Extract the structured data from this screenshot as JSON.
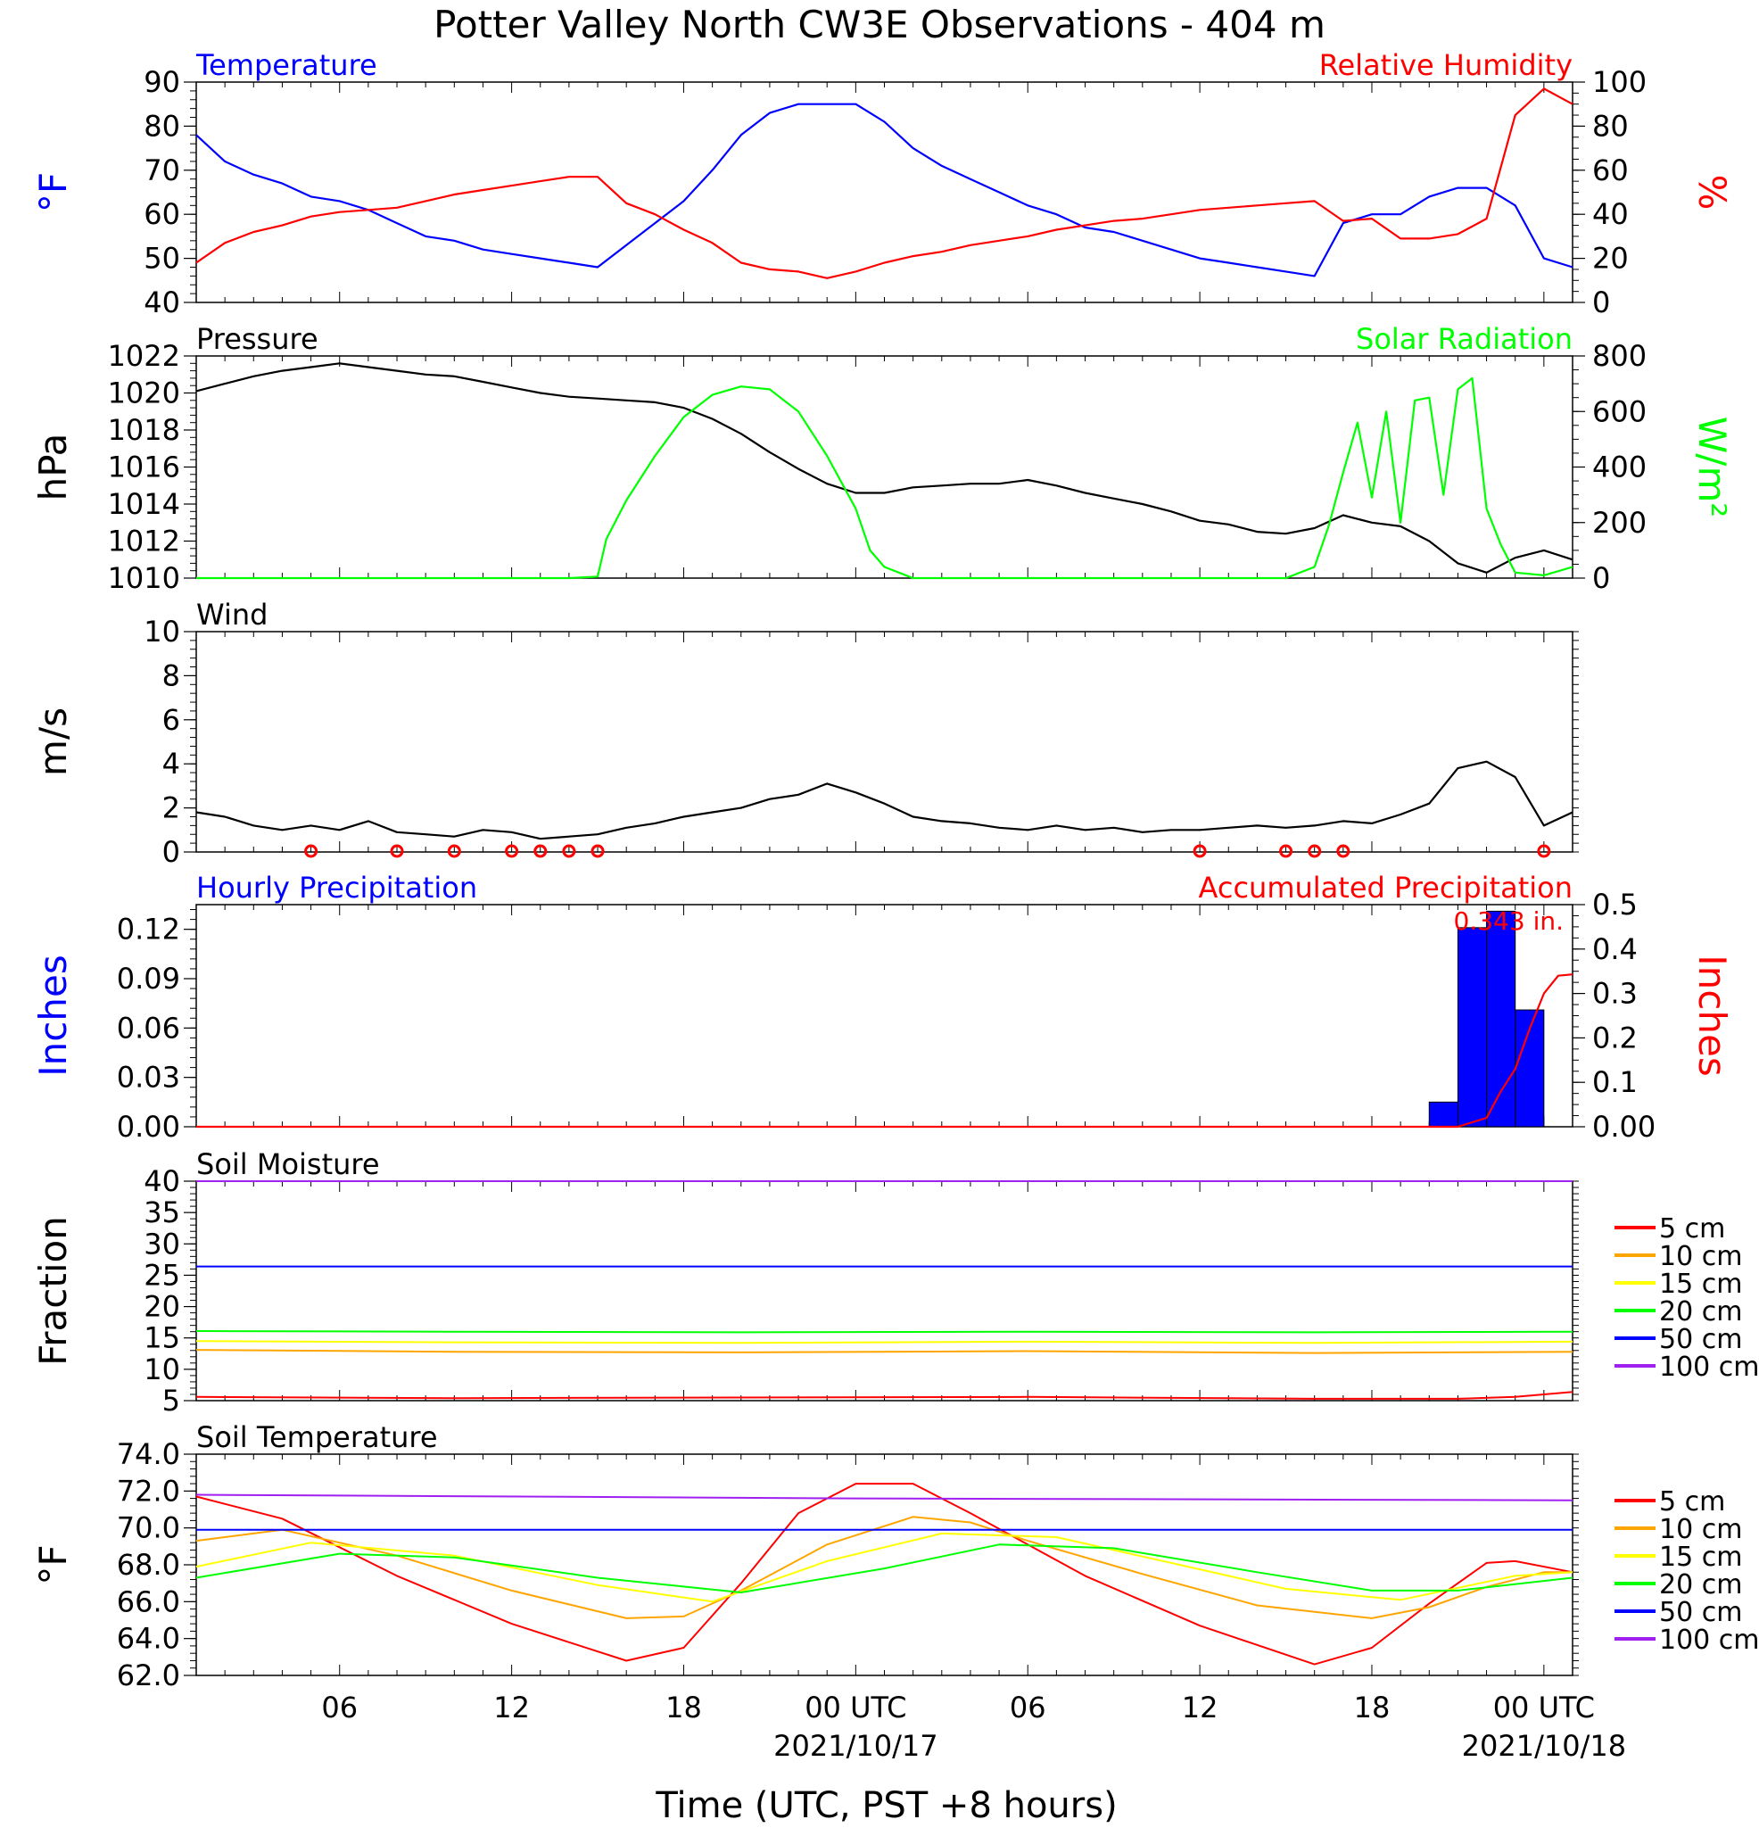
{
  "title": "Potter Valley North CW3E Observations - 404 m",
  "x_axis": {
    "title": "Time (UTC, PST +8 hours)",
    "ticks": [
      {
        "hour": 6,
        "label": "06",
        "date": ""
      },
      {
        "hour": 12,
        "label": "12",
        "date": ""
      },
      {
        "hour": 18,
        "label": "18",
        "date": ""
      },
      {
        "hour": 24,
        "label": "00 UTC",
        "date": "2021/10/17"
      },
      {
        "hour": 30,
        "label": "06",
        "date": ""
      },
      {
        "hour": 36,
        "label": "12",
        "date": ""
      },
      {
        "hour": 42,
        "label": "18",
        "date": ""
      },
      {
        "hour": 48,
        "label": "00 UTC",
        "date": "2021/10/18"
      }
    ]
  },
  "colors": {
    "temperature": "#0000ff",
    "humidity": "#ff0000",
    "pressure": "#000000",
    "solar": "#00ff00",
    "wind": "#000000",
    "barbs": "#ff0000",
    "precip_bars": "#0000ff",
    "accum": "#ff0000",
    "soil": {
      "5 cm": "#ff0000",
      "10 cm": "#ffa500",
      "15 cm": "#ffff00",
      "20 cm": "#00ff00",
      "50 cm": "#0000ff",
      "100 cm": "#a020f0"
    }
  },
  "chart_data": [
    {
      "type": "line",
      "panel": "temp_rh",
      "left_title": "Temperature",
      "right_title": "Relative Humidity",
      "left_unit": "°F",
      "right_unit": "%",
      "left_ylim": [
        40,
        90
      ],
      "right_ylim": [
        0,
        100
      ],
      "left_ticks": [
        "40",
        "50",
        "60",
        "70",
        "80",
        "90"
      ],
      "right_ticks": [
        "0",
        "20",
        "40",
        "60",
        "80",
        "100"
      ],
      "series": [
        {
          "name": "Temperature",
          "axis": "left",
          "x": [
            1,
            2,
            3,
            4,
            5,
            6,
            7,
            8,
            9,
            10,
            11,
            12,
            13,
            14,
            15,
            16,
            17,
            18,
            19,
            20,
            21,
            22,
            23,
            24,
            25,
            26,
            27,
            28,
            29,
            30,
            31,
            32,
            33,
            34,
            35,
            36,
            37,
            38,
            39,
            40,
            41,
            42,
            43,
            44,
            45,
            46,
            47,
            48,
            49
          ],
          "y": [
            78,
            72,
            69,
            67,
            64,
            63,
            61,
            58,
            55,
            54,
            52,
            51,
            50,
            49,
            48,
            53,
            58,
            63,
            70,
            78,
            83,
            85,
            85,
            85,
            81,
            75,
            71,
            68,
            65,
            62,
            60,
            57,
            56,
            54,
            52,
            50,
            49,
            48,
            47,
            46,
            58,
            60,
            60,
            64,
            66,
            66,
            62,
            50,
            48
          ]
        },
        {
          "name": "Relative Humidity",
          "axis": "right",
          "x": [
            1,
            2,
            3,
            4,
            5,
            6,
            7,
            8,
            9,
            10,
            11,
            12,
            13,
            14,
            15,
            16,
            17,
            18,
            19,
            20,
            21,
            22,
            23,
            24,
            25,
            26,
            27,
            28,
            29,
            30,
            31,
            32,
            33,
            34,
            35,
            36,
            37,
            38,
            39,
            40,
            41,
            42,
            43,
            44,
            45,
            46,
            47,
            48,
            49
          ],
          "y": [
            18,
            27,
            32,
            35,
            39,
            41,
            42,
            43,
            46,
            49,
            51,
            53,
            55,
            57,
            57,
            45,
            40,
            33,
            27,
            18,
            15,
            14,
            11,
            14,
            18,
            21,
            23,
            26,
            28,
            30,
            33,
            35,
            37,
            38,
            40,
            42,
            43,
            44,
            45,
            46,
            37,
            38,
            29,
            29,
            31,
            38,
            85,
            97,
            90
          ]
        }
      ]
    },
    {
      "type": "line",
      "panel": "pressure_solar",
      "left_title": "Pressure",
      "right_title": "Solar Radiation",
      "left_unit": "hPa",
      "right_unit": "W/m²",
      "left_ylim": [
        1010,
        1022
      ],
      "right_ylim": [
        0,
        800
      ],
      "left_ticks": [
        "1010",
        "1012",
        "1014",
        "1016",
        "1018",
        "1020",
        "1022"
      ],
      "right_ticks": [
        "0",
        "200",
        "400",
        "600",
        "800"
      ],
      "series": [
        {
          "name": "Pressure",
          "axis": "left",
          "x": [
            1,
            2,
            3,
            4,
            5,
            6,
            7,
            8,
            9,
            10,
            11,
            12,
            13,
            14,
            15,
            16,
            17,
            18,
            19,
            20,
            21,
            22,
            23,
            24,
            25,
            26,
            27,
            28,
            29,
            30,
            31,
            32,
            33,
            34,
            35,
            36,
            37,
            38,
            39,
            40,
            41,
            42,
            43,
            44,
            45,
            46,
            47,
            48,
            49
          ],
          "y": [
            1020.1,
            1020.5,
            1020.9,
            1021.2,
            1021.4,
            1021.6,
            1021.4,
            1021.2,
            1021.0,
            1020.9,
            1020.6,
            1020.3,
            1020.0,
            1019.8,
            1019.7,
            1019.6,
            1019.5,
            1019.2,
            1018.6,
            1017.8,
            1016.8,
            1015.9,
            1015.1,
            1014.6,
            1014.6,
            1014.9,
            1015.0,
            1015.1,
            1015.1,
            1015.3,
            1015.0,
            1014.6,
            1014.3,
            1014.0,
            1013.6,
            1013.1,
            1012.9,
            1012.5,
            1012.4,
            1012.7,
            1013.4,
            1013.0,
            1012.8,
            1012.0,
            1010.8,
            1010.3,
            1011.1,
            1011.5,
            1011.0
          ]
        },
        {
          "name": "Solar Radiation",
          "axis": "right",
          "x": [
            1,
            2,
            3,
            4,
            5,
            6,
            7,
            8,
            9,
            10,
            11,
            12,
            13,
            14,
            15,
            15.3,
            16,
            17,
            18,
            19,
            20,
            21,
            22,
            23,
            24,
            24.5,
            25,
            26,
            30,
            38,
            39,
            40,
            40.5,
            41,
            41.5,
            42,
            42.5,
            43,
            43.5,
            44,
            44.5,
            45,
            45.5,
            46,
            46.5,
            47,
            48,
            49
          ],
          "y": [
            0,
            0,
            0,
            0,
            0,
            0,
            0,
            0,
            0,
            0,
            0,
            0,
            0,
            0,
            5,
            140,
            280,
            440,
            580,
            660,
            690,
            680,
            600,
            440,
            250,
            100,
            40,
            0,
            0,
            0,
            0,
            40,
            190,
            380,
            560,
            290,
            600,
            200,
            640,
            650,
            300,
            680,
            720,
            250,
            120,
            20,
            10,
            40
          ]
        }
      ]
    },
    {
      "type": "line",
      "panel": "wind",
      "left_title": "Wind",
      "left_unit": "m/s",
      "left_ylim": [
        0,
        10
      ],
      "left_ticks": [
        "0",
        "2",
        "4",
        "6",
        "8",
        "10"
      ],
      "series": [
        {
          "name": "Wind",
          "axis": "left",
          "x": [
            1,
            2,
            3,
            4,
            5,
            6,
            7,
            8,
            9,
            10,
            11,
            12,
            13,
            14,
            15,
            16,
            17,
            18,
            19,
            20,
            21,
            22,
            23,
            24,
            25,
            26,
            27,
            28,
            29,
            30,
            31,
            32,
            33,
            34,
            35,
            36,
            37,
            38,
            39,
            40,
            41,
            42,
            43,
            44,
            45,
            46,
            47,
            48,
            49
          ],
          "y": [
            1.8,
            1.6,
            1.2,
            1.0,
            1.2,
            1.0,
            1.4,
            0.9,
            0.8,
            0.7,
            1.0,
            0.9,
            0.6,
            0.7,
            0.8,
            1.1,
            1.3,
            1.6,
            1.8,
            2.0,
            2.4,
            2.6,
            3.1,
            2.7,
            2.2,
            1.6,
            1.4,
            1.3,
            1.1,
            1.0,
            1.2,
            1.0,
            1.1,
            0.9,
            1.0,
            1.0,
            1.1,
            1.2,
            1.1,
            1.2,
            1.4,
            1.3,
            1.7,
            2.2,
            3.8,
            4.1,
            3.4,
            1.2,
            1.8
          ]
        }
      ]
    },
    {
      "type": "bar",
      "panel": "precip",
      "left_title": "Hourly Precipitation",
      "right_title": "Accumulated Precipitation",
      "left_unit": "Inches",
      "right_unit": "Inches",
      "left_ylim": [
        0,
        0.135
      ],
      "right_ylim": [
        0,
        0.5
      ],
      "left_ticks": [
        "0.00",
        "0.03",
        "0.06",
        "0.09",
        "0.12"
      ],
      "right_ticks": [
        "0.00",
        "0.1",
        "0.2",
        "0.3",
        "0.4",
        "0.5"
      ],
      "annotation": "0.343 in.",
      "bars": {
        "name": "Hourly Precipitation",
        "x": [
          45,
          46,
          47,
          48
        ],
        "values": [
          0.015,
          0.121,
          0.131,
          0.071
        ]
      },
      "series": [
        {
          "name": "Accumulated Precipitation",
          "axis": "right",
          "x": [
            1,
            45,
            46,
            46.5,
            47,
            47.5,
            48,
            48.5,
            49
          ],
          "y": [
            0,
            0,
            0.02,
            0.08,
            0.13,
            0.22,
            0.3,
            0.34,
            0.343
          ]
        }
      ]
    },
    {
      "type": "line",
      "panel": "soil_moisture",
      "left_title": "Soil Moisture",
      "left_unit": "Fraction",
      "left_ylim": [
        5,
        40
      ],
      "left_ticks": [
        "5",
        "10",
        "15",
        "20",
        "25",
        "30",
        "35",
        "40"
      ],
      "legend": [
        "5 cm",
        "10 cm",
        "15 cm",
        "20 cm",
        "50 cm",
        "100 cm"
      ],
      "series": [
        {
          "name": "5 cm",
          "x": [
            1,
            10,
            20,
            30,
            40,
            45,
            47,
            49
          ],
          "y": [
            5.6,
            5.4,
            5.5,
            5.6,
            5.3,
            5.3,
            5.6,
            6.4
          ]
        },
        {
          "name": "10 cm",
          "x": [
            1,
            10,
            20,
            30,
            40,
            49
          ],
          "y": [
            13.1,
            12.8,
            12.7,
            12.9,
            12.6,
            12.8
          ]
        },
        {
          "name": "15 cm",
          "x": [
            1,
            10,
            20,
            30,
            40,
            49
          ],
          "y": [
            14.5,
            14.3,
            14.2,
            14.4,
            14.2,
            14.4
          ]
        },
        {
          "name": "20 cm",
          "x": [
            1,
            10,
            20,
            30,
            40,
            49
          ],
          "y": [
            16.1,
            16.0,
            15.9,
            16.0,
            15.9,
            16.0
          ]
        },
        {
          "name": "50 cm",
          "x": [
            1,
            49
          ],
          "y": [
            26.4,
            26.4
          ]
        },
        {
          "name": "100 cm",
          "x": [
            1,
            49
          ],
          "y": [
            40.0,
            40.0
          ]
        }
      ]
    },
    {
      "type": "line",
      "panel": "soil_temperature",
      "left_title": "Soil Temperature",
      "left_unit": "°F",
      "left_ylim": [
        62,
        74
      ],
      "left_ticks": [
        "62.0",
        "64.0",
        "66.0",
        "68.0",
        "70.0",
        "72.0",
        "74.0"
      ],
      "legend": [
        "5 cm",
        "10 cm",
        "15 cm",
        "20 cm",
        "50 cm",
        "100 cm"
      ],
      "series": [
        {
          "name": "5 cm",
          "x": [
            1,
            4,
            8,
            12,
            16,
            18,
            20,
            22,
            24,
            26,
            28,
            32,
            36,
            40,
            42,
            44,
            46,
            47,
            49
          ],
          "y": [
            71.7,
            70.5,
            67.4,
            64.8,
            62.8,
            63.5,
            67.0,
            70.8,
            72.4,
            72.4,
            70.8,
            67.4,
            64.7,
            62.6,
            63.5,
            65.9,
            68.1,
            68.2,
            67.6
          ]
        },
        {
          "name": "10 cm",
          "x": [
            1,
            4,
            8,
            12,
            16,
            18,
            20,
            23,
            26,
            28,
            30,
            34,
            38,
            42,
            44,
            46,
            48,
            49
          ],
          "y": [
            69.3,
            69.9,
            68.5,
            66.6,
            65.1,
            65.2,
            66.6,
            69.1,
            70.6,
            70.3,
            69.3,
            67.5,
            65.8,
            65.1,
            65.7,
            66.8,
            67.6,
            67.6
          ]
        },
        {
          "name": "15 cm",
          "x": [
            1,
            5,
            10,
            15,
            19,
            23,
            27,
            31,
            35,
            39,
            43,
            47,
            49
          ],
          "y": [
            67.9,
            69.2,
            68.5,
            66.9,
            66.0,
            68.2,
            69.7,
            69.5,
            68.1,
            66.7,
            66.1,
            67.4,
            67.6
          ]
        },
        {
          "name": "20 cm",
          "x": [
            1,
            6,
            10,
            15,
            20,
            25,
            29,
            33,
            38,
            42,
            45,
            49
          ],
          "y": [
            67.3,
            68.6,
            68.4,
            67.3,
            66.5,
            67.8,
            69.1,
            68.9,
            67.6,
            66.6,
            66.6,
            67.3
          ]
        },
        {
          "name": "50 cm",
          "x": [
            1,
            49
          ],
          "y": [
            69.9,
            69.9
          ]
        },
        {
          "name": "100 cm",
          "x": [
            1,
            24,
            49
          ],
          "y": [
            71.8,
            71.6,
            71.5
          ]
        }
      ]
    },
    {
      "type": "barbs",
      "panel": "wind_direction_barbs",
      "note": "calm markers (circles) at these hours",
      "calm_hours": [
        5,
        8,
        10,
        12,
        13,
        14,
        15,
        36,
        39,
        40,
        41,
        48
      ]
    }
  ]
}
